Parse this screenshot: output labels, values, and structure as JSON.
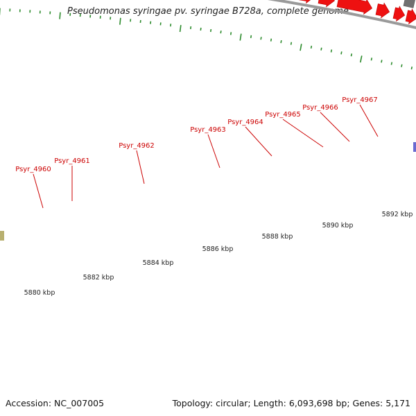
{
  "title": "Pseudomonas syringae pv. syringae B728a, complete genome",
  "footer": {
    "accession": "Accession: NC_007005",
    "stats": "Topology: circular; Length: 6,093,698 bp; Genes: 5,171"
  },
  "colors": {
    "forward_gene": "#ee1111",
    "reverse_gene": "#707070",
    "backbone": "#9a9a9a",
    "tick": "#2a8a2a",
    "label": "#cc0000"
  },
  "scale_labels": [
    "5880 kbp",
    "5882 kbp",
    "5884 kbp",
    "5886 kbp",
    "5888 kbp",
    "5890 kbp",
    "5892 kbp"
  ],
  "gene_labels": [
    "Psyr_4960",
    "Psyr_4961",
    "Psyr_4962",
    "Psyr_4963",
    "Psyr_4964",
    "Psyr_4965",
    "Psyr_4966",
    "Psyr_4967"
  ]
}
